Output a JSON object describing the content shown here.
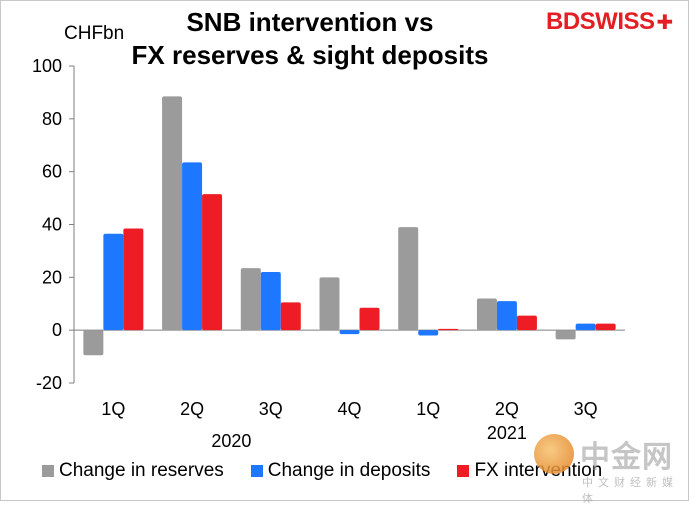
{
  "header": {
    "title_line1": "SNB intervention vs",
    "title_line2": "FX reserves & sight deposits",
    "unit": "CHFbn",
    "logo": "BDSWISS",
    "watermark": "中金网",
    "watermark_sub": "中文财经新媒体"
  },
  "chart_data": {
    "type": "bar",
    "categories": [
      "1Q",
      "2Q",
      "3Q",
      "4Q",
      "1Q",
      "2Q",
      "3Q"
    ],
    "year_labels": [
      {
        "label": "2020",
        "first_index": 0,
        "last_index": 3
      },
      {
        "label": "2021",
        "first_index": 4,
        "last_index": 6
      }
    ],
    "series": [
      {
        "name": "Change in reserves",
        "color": "#9b9b9b",
        "values": [
          -9.5,
          88.5,
          23.5,
          20,
          39,
          12,
          3.5
        ]
      },
      {
        "name": "Change in deposits",
        "color": "#1e78ff",
        "values": [
          36.5,
          63.5,
          22,
          -1.5,
          -2,
          11,
          2.5
        ]
      },
      {
        "name": "FX intervention",
        "color": "#ee1c25",
        "values": [
          38.5,
          51.5,
          10.5,
          8.5,
          0.5,
          5.5,
          2.5
        ]
      }
    ],
    "reserves_q3_2021_sign": -1,
    "ylim": [
      -20,
      100
    ],
    "yticks": [
      -20,
      0,
      20,
      40,
      60,
      80,
      100
    ],
    "xlabel": "",
    "ylabel": "CHFbn",
    "grid": false,
    "legend_position": "bottom"
  }
}
